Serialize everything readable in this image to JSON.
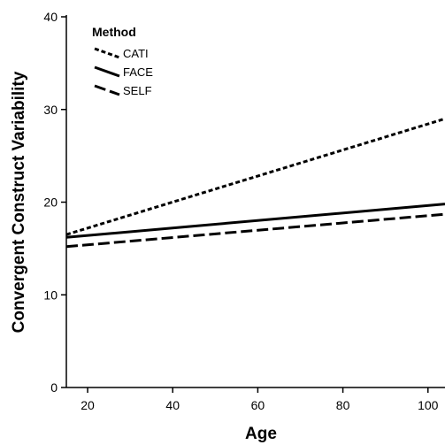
{
  "chart_data": {
    "type": "line",
    "xlabel": "Age",
    "ylabel": "Convergent Construct Variability",
    "xlim": [
      15,
      104
    ],
    "ylim": [
      0,
      40
    ],
    "x_ticks": [
      20,
      40,
      60,
      80,
      100
    ],
    "y_ticks": [
      0,
      10,
      20,
      30,
      40
    ],
    "grid": false,
    "legend": {
      "title": "Method",
      "position": "top-left",
      "entries": [
        "CATI",
        "FACE",
        "SELF"
      ]
    },
    "series": [
      {
        "name": "CATI",
        "line_style": "dotted",
        "x": [
          15,
          104
        ],
        "y": [
          16.5,
          29.0
        ]
      },
      {
        "name": "FACE",
        "line_style": "solid",
        "x": [
          15,
          104
        ],
        "y": [
          16.2,
          19.8
        ]
      },
      {
        "name": "SELF",
        "line_style": "dashed",
        "x": [
          15,
          104
        ],
        "y": [
          15.2,
          18.7
        ]
      }
    ],
    "colors": {
      "axis": "#000000",
      "line": "#000000",
      "background": "#ffffff"
    }
  }
}
